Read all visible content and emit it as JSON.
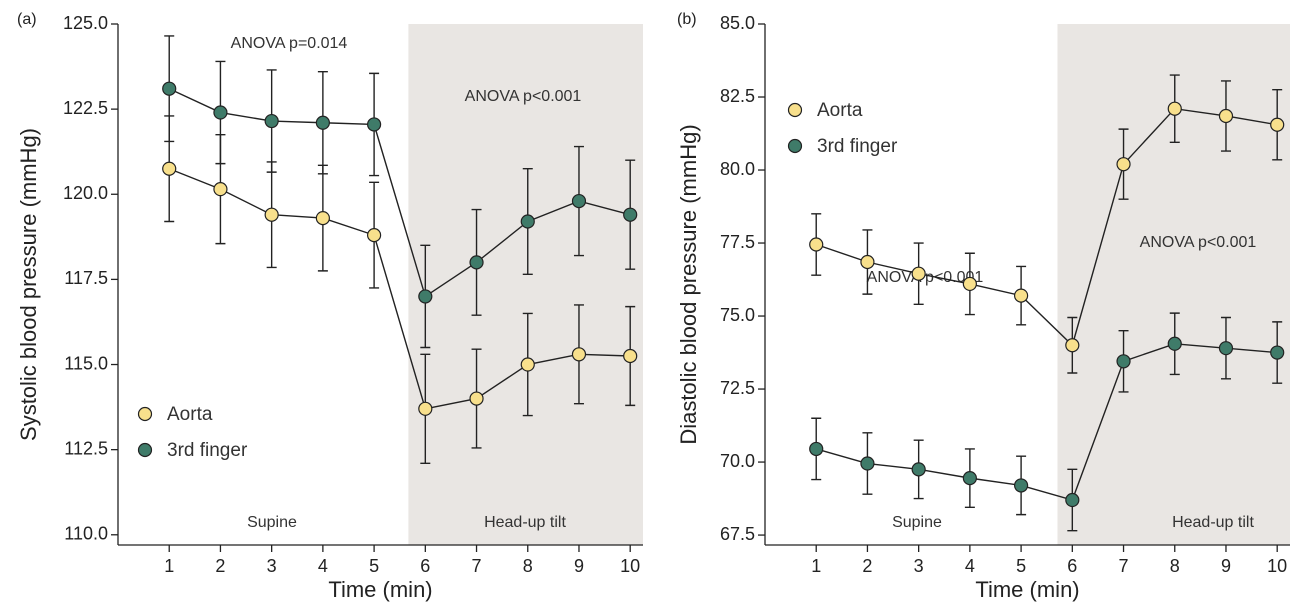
{
  "chart_data": [
    {
      "type": "line",
      "panel_label": "(a)",
      "y_label": "Systolic blood pressure (mmHg)",
      "x_label": "Time (min)",
      "x": [
        1,
        2,
        3,
        4,
        5,
        6,
        7,
        8,
        9,
        10
      ],
      "xlim": [
        0,
        10.25
      ],
      "xticks": [
        1,
        2,
        3,
        4,
        5,
        6,
        7,
        8,
        9,
        10
      ],
      "ylim": [
        109.7,
        125
      ],
      "yticks": [
        {
          "value": 110,
          "label": "110.0"
        },
        {
          "value": 112.5,
          "label": "112.5"
        },
        {
          "value": 115,
          "label": "115.0"
        },
        {
          "value": 117.5,
          "label": "117.5"
        },
        {
          "value": 120,
          "label": "120.0"
        },
        {
          "value": 122.5,
          "label": "122.5"
        },
        {
          "value": 125,
          "label": "125.0"
        }
      ],
      "shade": {
        "from": 5.67,
        "to": 10.25,
        "color": "#e9e6e3"
      },
      "legend": "lower left",
      "annotations": [
        "ANOVA p=0.014",
        "ANOVA p<0.001",
        "Supine",
        "Head-up tilt"
      ],
      "series": [
        {
          "name": "Aorta",
          "color": "#f8e08c",
          "values": [
            120.75,
            120.15,
            119.4,
            119.3,
            118.8,
            113.7,
            114.0,
            115.0,
            115.3,
            115.25
          ],
          "errors": [
            1.55,
            1.6,
            1.55,
            1.55,
            1.55,
            1.6,
            1.45,
            1.5,
            1.45,
            1.45
          ]
        },
        {
          "name": "3rd finger",
          "color": "#3f7b69",
          "values": [
            123.1,
            122.4,
            122.15,
            122.1,
            122.05,
            117.0,
            118.0,
            119.2,
            119.8,
            119.4
          ],
          "errors": [
            1.55,
            1.5,
            1.5,
            1.5,
            1.5,
            1.5,
            1.55,
            1.55,
            1.6,
            1.6
          ]
        }
      ]
    },
    {
      "type": "line",
      "panel_label": "(b)",
      "y_label": "Diastolic blood pressure (mmHg)",
      "x_label": "Time (min)",
      "x": [
        1,
        2,
        3,
        4,
        5,
        6,
        7,
        8,
        9,
        10
      ],
      "xlim": [
        0,
        10.25
      ],
      "xticks": [
        1,
        2,
        3,
        4,
        5,
        6,
        7,
        8,
        9,
        10
      ],
      "ylim": [
        67.16,
        85
      ],
      "yticks": [
        {
          "value": 67.5,
          "label": "67.5"
        },
        {
          "value": 70,
          "label": "70.0"
        },
        {
          "value": 72.5,
          "label": "72.5"
        },
        {
          "value": 75,
          "label": "75.0"
        },
        {
          "value": 77.5,
          "label": "77.5"
        },
        {
          "value": 80,
          "label": "80.0"
        },
        {
          "value": 82.5,
          "label": "82.5"
        },
        {
          "value": 85,
          "label": "85.0"
        }
      ],
      "shade": {
        "from": 5.71,
        "to": 10.25,
        "color": "#e9e6e3"
      },
      "legend": "upper left",
      "annotations": [
        "ANOVA p<0.001",
        "ANOVA p<0.001",
        "Supine",
        "Head-up tilt"
      ],
      "series": [
        {
          "name": "Aorta",
          "color": "#f8e08c",
          "values": [
            77.45,
            76.85,
            76.45,
            76.1,
            75.7,
            74.0,
            80.2,
            82.1,
            81.85,
            81.55
          ],
          "errors": [
            1.05,
            1.1,
            1.05,
            1.05,
            1.0,
            0.95,
            1.2,
            1.15,
            1.2,
            1.2
          ]
        },
        {
          "name": "3rd finger",
          "color": "#3f7b69",
          "values": [
            70.45,
            69.95,
            69.75,
            69.45,
            69.2,
            68.7,
            73.45,
            74.05,
            73.9,
            73.75
          ],
          "errors": [
            1.05,
            1.05,
            1.0,
            1.0,
            1.0,
            1.05,
            1.05,
            1.05,
            1.05,
            1.05
          ]
        }
      ]
    }
  ]
}
